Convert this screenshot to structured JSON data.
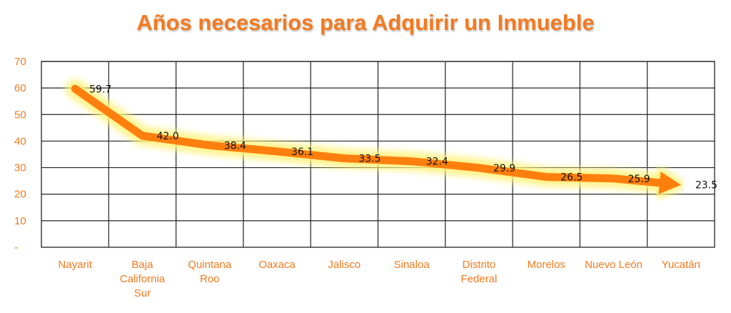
{
  "chart_data": {
    "type": "line",
    "title": "Años necesarios para Adquirir un Inmueble",
    "categories": [
      [
        "Nayarit"
      ],
      [
        "Baja",
        "California",
        "Sur"
      ],
      [
        "Quintana",
        "Roo"
      ],
      [
        "Oaxaca"
      ],
      [
        "Jalisco"
      ],
      [
        "Sinaloa"
      ],
      [
        "Distrito",
        "Federal"
      ],
      [
        "Morelos"
      ],
      [
        "Nuevo León"
      ],
      [
        "Yucatán"
      ]
    ],
    "values": [
      59.7,
      42.0,
      38.4,
      36.1,
      33.5,
      32.4,
      29.9,
      26.5,
      25.9,
      23.5
    ],
    "data_labels": [
      "59.7",
      "42.0",
      "38.4",
      "36.1",
      "33.5",
      "32.4",
      "29.9",
      "26.5",
      "25.9",
      "23.5"
    ],
    "y_ticks": [
      "-",
      "10",
      "20",
      "30",
      "40",
      "50",
      "60",
      "70"
    ],
    "ylim": [
      0,
      70
    ],
    "grid": true,
    "line_color": "#ff7f0e",
    "glow_color": "#fff27a",
    "label_color": "#f47a1f",
    "end_marker": "arrow"
  }
}
